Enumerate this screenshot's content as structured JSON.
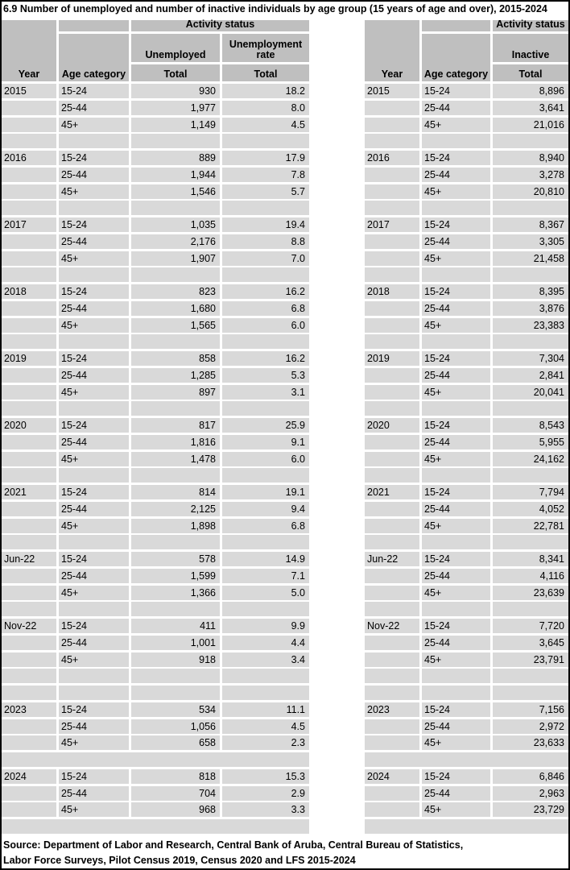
{
  "page": {
    "title": "6.9 Number of unemployed and number of inactive individuals by age group (15 years of age and over), 2015-2024"
  },
  "colors": {
    "header_gray": "#bfbfbf",
    "row_gray": "#d9d9d9",
    "border": "#000000",
    "background": "#ffffff",
    "text": "#000000"
  },
  "left_table": {
    "header": {
      "activity_status": "Activity status",
      "group_col1": "Unemployed",
      "group_col2": "Unemployment rate",
      "year": "Year",
      "age_category": "Age category",
      "total_col1": "Total",
      "total_col2": "Total"
    },
    "groups": [
      {
        "year": "2015",
        "rows": [
          {
            "age": "15-24",
            "total": "930",
            "rate": "18.2"
          },
          {
            "age": "25-44",
            "total": "1,977",
            "rate": "8.0"
          },
          {
            "age": "45+",
            "total": "1,149",
            "rate": "4.5"
          }
        ]
      },
      {
        "year": "2016",
        "rows": [
          {
            "age": "15-24",
            "total": "889",
            "rate": "17.9"
          },
          {
            "age": "25-44",
            "total": "1,944",
            "rate": "7.8"
          },
          {
            "age": "45+",
            "total": "1,546",
            "rate": "5.7"
          }
        ]
      },
      {
        "year": "2017",
        "rows": [
          {
            "age": "15-24",
            "total": "1,035",
            "rate": "19.4"
          },
          {
            "age": "25-44",
            "total": "2,176",
            "rate": "8.8"
          },
          {
            "age": "45+",
            "total": "1,907",
            "rate": "7.0"
          }
        ]
      },
      {
        "year": "2018",
        "rows": [
          {
            "age": "15-24",
            "total": "823",
            "rate": "16.2"
          },
          {
            "age": "25-44",
            "total": "1,680",
            "rate": "6.8"
          },
          {
            "age": "45+",
            "total": "1,565",
            "rate": "6.0"
          }
        ]
      },
      {
        "year": "2019",
        "rows": [
          {
            "age": "15-24",
            "total": "858",
            "rate": "16.2"
          },
          {
            "age": "25-44",
            "total": "1,285",
            "rate": "5.3"
          },
          {
            "age": "45+",
            "total": "897",
            "rate": "3.1"
          }
        ]
      },
      {
        "year": "2020",
        "rows": [
          {
            "age": "15-24",
            "total": "817",
            "rate": "25.9"
          },
          {
            "age": "25-44",
            "total": "1,816",
            "rate": "9.1"
          },
          {
            "age": "45+",
            "total": "1,478",
            "rate": "6.0"
          }
        ]
      },
      {
        "year": "2021",
        "rows": [
          {
            "age": "15-24",
            "total": "814",
            "rate": "19.1"
          },
          {
            "age": "25-44",
            "total": "2,125",
            "rate": "9.4"
          },
          {
            "age": "45+",
            "total": "1,898",
            "rate": "6.8"
          }
        ]
      },
      {
        "year": "Jun-22",
        "rows": [
          {
            "age": "15-24",
            "total": "578",
            "rate": "14.9"
          },
          {
            "age": "25-44",
            "total": "1,599",
            "rate": "7.1"
          },
          {
            "age": "45+",
            "total": "1,366",
            "rate": "5.0"
          }
        ]
      },
      {
        "year": "Nov-22",
        "rows": [
          {
            "age": "15-24",
            "total": "411",
            "rate": "9.9"
          },
          {
            "age": "25-44",
            "total": "1,001",
            "rate": "4.4"
          },
          {
            "age": "45+",
            "total": "918",
            "rate": "3.4"
          }
        ]
      },
      {
        "year": "2023",
        "rows": [
          {
            "age": "15-24",
            "total": "534",
            "rate": "11.1"
          },
          {
            "age": "25-44",
            "total": "1,056",
            "rate": "4.5"
          },
          {
            "age": "45+",
            "total": "658",
            "rate": "2.3"
          }
        ]
      },
      {
        "year": "2024",
        "rows": [
          {
            "age": "15-24",
            "total": "818",
            "rate": "15.3"
          },
          {
            "age": "25-44",
            "total": "704",
            "rate": "2.9"
          },
          {
            "age": "45+",
            "total": "968",
            "rate": "3.3"
          }
        ]
      }
    ]
  },
  "right_table": {
    "header": {
      "activity_status": "Activity status",
      "group_col1": "Inactive",
      "year": "Year",
      "age_category": "Age category",
      "total_col1": "Total"
    },
    "groups": [
      {
        "year": "2015",
        "rows": [
          {
            "age": "15-24",
            "total": "8,896"
          },
          {
            "age": "25-44",
            "total": "3,641"
          },
          {
            "age": "45+",
            "total": "21,016"
          }
        ]
      },
      {
        "year": "2016",
        "rows": [
          {
            "age": "15-24",
            "total": "8,940"
          },
          {
            "age": "25-44",
            "total": "3,278"
          },
          {
            "age": "45+",
            "total": "20,810"
          }
        ]
      },
      {
        "year": "2017",
        "rows": [
          {
            "age": "15-24",
            "total": "8,367"
          },
          {
            "age": "25-44",
            "total": "3,305"
          },
          {
            "age": "45+",
            "total": "21,458"
          }
        ]
      },
      {
        "year": "2018",
        "rows": [
          {
            "age": "15-24",
            "total": "8,395"
          },
          {
            "age": "25-44",
            "total": "3,876"
          },
          {
            "age": "45+",
            "total": "23,383"
          }
        ]
      },
      {
        "year": "2019",
        "rows": [
          {
            "age": "15-24",
            "total": "7,304"
          },
          {
            "age": "25-44",
            "total": "2,841"
          },
          {
            "age": "45+",
            "total": "20,041"
          }
        ]
      },
      {
        "year": "2020",
        "rows": [
          {
            "age": "15-24",
            "total": "8,543"
          },
          {
            "age": "25-44",
            "total": "5,955"
          },
          {
            "age": "45+",
            "total": "24,162"
          }
        ]
      },
      {
        "year": "2021",
        "rows": [
          {
            "age": "15-24",
            "total": "7,794"
          },
          {
            "age": "25-44",
            "total": "4,052"
          },
          {
            "age": "45+",
            "total": "22,781"
          }
        ]
      },
      {
        "year": "Jun-22",
        "rows": [
          {
            "age": "15-24",
            "total": "8,341"
          },
          {
            "age": "25-44",
            "total": "4,116"
          },
          {
            "age": "45+",
            "total": "23,639"
          }
        ]
      },
      {
        "year": "Nov-22",
        "rows": [
          {
            "age": "15-24",
            "total": "7,720"
          },
          {
            "age": "25-44",
            "total": "3,645"
          },
          {
            "age": "45+",
            "total": "23,791"
          }
        ]
      },
      {
        "year": "2023",
        "rows": [
          {
            "age": "15-24",
            "total": "7,156"
          },
          {
            "age": "25-44",
            "total": "2,972"
          },
          {
            "age": "45+",
            "total": "23,633"
          }
        ]
      },
      {
        "year": "2024",
        "rows": [
          {
            "age": "15-24",
            "total": "6,846"
          },
          {
            "age": "25-44",
            "total": "2,963"
          },
          {
            "age": "45+",
            "total": "23,729"
          }
        ]
      }
    ]
  },
  "footer": {
    "line1": "Source: Department of Labor and Research, Central Bank of Aruba, Central Bureau of Statistics,",
    "line2": "Labor Force Surveys, Pilot Census 2019, Census 2020 and LFS 2015-2024"
  }
}
